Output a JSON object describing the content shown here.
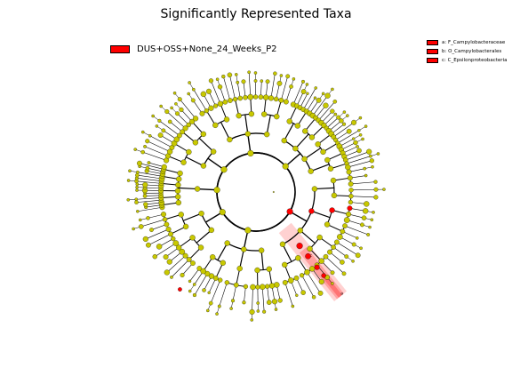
{
  "chart_data": {
    "type": "cladogram",
    "title": "Significantly Represented Taxa",
    "legend": [
      {
        "label": "DUS+OSS+None_24_Weeks_P2",
        "color": "#ff0000"
      }
    ],
    "highlighted_clades": [
      {
        "letter": "a",
        "label": "a: F_Campylobacteraceae",
        "color": "#ff0000"
      },
      {
        "letter": "b",
        "label": "b: O_Campylobacterales",
        "color": "#ff0000"
      },
      {
        "letter": "c",
        "label": "c: C_Epsilonproteobacteria",
        "color": "#ff0000"
      }
    ],
    "colors": {
      "node_default": "#c8c800",
      "node_enriched": "#ff0000",
      "edge": "#000000",
      "highlight": "#ff0000"
    },
    "levels": 6
  }
}
